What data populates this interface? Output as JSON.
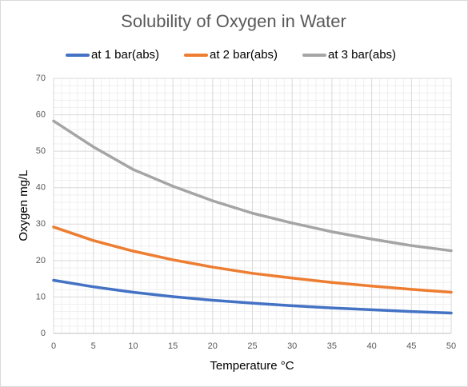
{
  "chart_data": {
    "type": "line",
    "title": "Solubility of Oxygen in Water",
    "xlabel": "Temperature °C",
    "ylabel": "Oxygen mg/L",
    "x": [
      0,
      5,
      10,
      15,
      20,
      25,
      30,
      35,
      40,
      45,
      50
    ],
    "series": [
      {
        "name": "at 1 bar(abs)",
        "color": "#4472c4",
        "values": [
          14.6,
          12.8,
          11.3,
          10.1,
          9.1,
          8.3,
          7.6,
          7.0,
          6.5,
          6.0,
          5.6
        ]
      },
      {
        "name": "at 2 bar(abs)",
        "color": "#ed7d31",
        "values": [
          29.2,
          25.5,
          22.6,
          20.2,
          18.2,
          16.5,
          15.2,
          14.0,
          13.0,
          12.1,
          11.3
        ]
      },
      {
        "name": "at 3 bar(abs)",
        "color": "#a5a5a5",
        "values": [
          58.3,
          51.2,
          45.0,
          40.4,
          36.4,
          33.0,
          30.3,
          27.9,
          25.9,
          24.1,
          22.7
        ]
      }
    ],
    "xlim": [
      0,
      50
    ],
    "xticks": [
      0,
      5,
      10,
      15,
      20,
      25,
      30,
      35,
      40,
      45,
      50
    ],
    "ylim": [
      0,
      70
    ],
    "yticks": [
      0,
      10,
      20,
      30,
      40,
      50,
      60,
      70
    ],
    "grid": true,
    "legend": "top"
  }
}
